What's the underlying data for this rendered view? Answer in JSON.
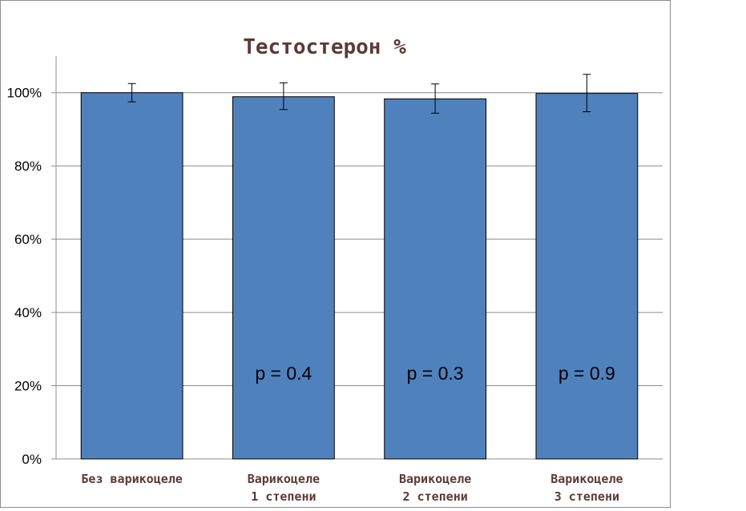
{
  "chart_data": {
    "type": "bar",
    "title": "Тестостерон %",
    "categories": [
      [
        "Без варикоцеле"
      ],
      [
        "Варикоцеле",
        "1 степени"
      ],
      [
        "Варикоцеле",
        "2 степени"
      ],
      [
        "Варикоцеле",
        "3 степени"
      ]
    ],
    "values": [
      100,
      98.9,
      98.3,
      99.8
    ],
    "error_plus": [
      2.5,
      3.8,
      4.1,
      5.2
    ],
    "error_minus": [
      2.5,
      3.5,
      3.9,
      5.0
    ],
    "annotations": [
      "",
      "p = 0.4",
      "p = 0.3",
      "p = 0.9"
    ],
    "yticks": [
      "0%",
      "20%",
      "40%",
      "60%",
      "80%",
      "100%"
    ],
    "ylim": [
      0,
      110
    ],
    "ytick_values": [
      0,
      20,
      40,
      60,
      80,
      100
    ],
    "grid": true,
    "legend": "none",
    "xlabel": "",
    "ylabel": ""
  },
  "colors": {
    "bar": "#4f81bd",
    "bar_edge": "#000000",
    "title": "#5b3a37",
    "category_label": "#5b3a37",
    "grid": "#8c8c8c"
  }
}
